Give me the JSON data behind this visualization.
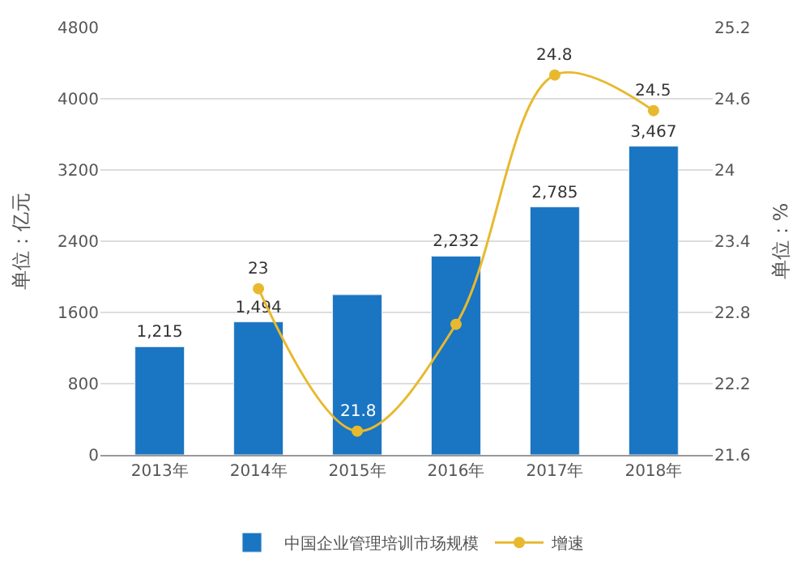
{
  "chart_data": {
    "type": "bar",
    "categories": [
      "2013年",
      "2014年",
      "2015年",
      "2016年",
      "2017年",
      "2018年"
    ],
    "series": [
      {
        "name": "中国企业管理培训市场规模",
        "color": "#1a75c2",
        "values": [
          1215,
          1494,
          1800,
          2232,
          2785,
          3467
        ],
        "value_labels": [
          "1,215",
          "1,494",
          null,
          "2,232",
          "2,785",
          "3,467"
        ]
      },
      {
        "name": "增速",
        "type": "line",
        "axis": "y2",
        "color": "#e8b92e",
        "values": [
          null,
          23.0,
          21.8,
          22.7,
          24.8,
          24.5
        ],
        "value_labels": [
          null,
          "23",
          "21.8",
          null,
          "24.8",
          "24.5"
        ]
      }
    ],
    "ylabel": "单位：亿元",
    "y2label": "单位：%",
    "ylim": [
      0,
      4800
    ],
    "yticks": [
      0,
      800,
      1600,
      2400,
      3200,
      4000,
      4800
    ],
    "y2lim": [
      21.6,
      25.2
    ],
    "y2ticks": [
      21.6,
      22.2,
      22.8,
      23.4,
      24,
      24.6,
      25.2
    ],
    "grid": "y",
    "legend": "bottom",
    "marker": "circle"
  }
}
